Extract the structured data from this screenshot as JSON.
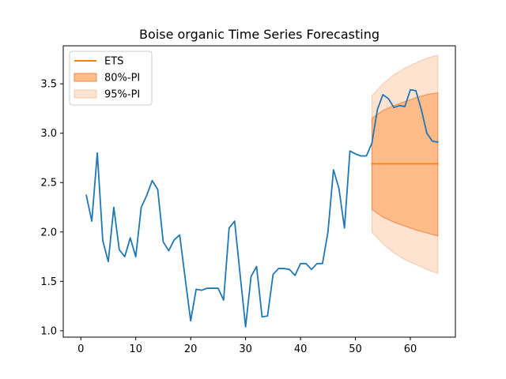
{
  "chart_data": {
    "type": "line",
    "title": "Boise organic Time Series Forecasting",
    "xlabel": "",
    "ylabel": "",
    "xlim": [
      -3.2,
      68.2
    ],
    "ylim": [
      0.935,
      3.885
    ],
    "x_ticks": [
      0,
      10,
      20,
      30,
      40,
      50,
      60
    ],
    "y_ticks": [
      1.0,
      1.5,
      2.0,
      2.5,
      3.0,
      3.5
    ],
    "y_tick_labels": [
      "1.0",
      "1.5",
      "2.0",
      "2.5",
      "3.0",
      "3.5"
    ],
    "grid": false,
    "legend_position": "top-left",
    "legend": [
      {
        "label": "ETS",
        "kind": "line",
        "color": "#ff7f0e"
      },
      {
        "label": "80%-PI",
        "kind": "fill",
        "color": "#ffbb88",
        "edge": "#ee8a50"
      },
      {
        "label": "95%-PI",
        "kind": "fill",
        "color": "#ffe3d1",
        "edge": "#f7c9aa"
      }
    ],
    "series": [
      {
        "role": "observed",
        "color": "#1f77b4",
        "x": [
          1,
          2,
          3,
          4,
          5,
          6,
          7,
          8,
          9,
          10,
          11,
          12,
          13,
          14,
          15,
          16,
          17,
          18,
          19,
          20,
          21,
          22,
          23,
          24,
          25,
          26,
          27,
          28,
          29,
          30,
          31,
          32,
          33,
          34,
          35,
          36,
          37,
          38,
          39,
          40,
          41,
          42,
          43,
          44,
          45,
          46,
          47,
          48,
          49,
          50,
          51,
          52,
          53,
          54,
          55,
          56,
          57,
          58,
          59,
          60,
          61,
          62,
          63,
          64,
          65
        ],
        "y": [
          2.37,
          2.11,
          2.8,
          1.91,
          1.7,
          2.25,
          1.82,
          1.75,
          1.94,
          1.75,
          2.25,
          2.37,
          2.52,
          2.43,
          1.9,
          1.81,
          1.92,
          1.97,
          1.53,
          1.1,
          1.42,
          1.41,
          1.43,
          1.43,
          1.43,
          1.31,
          2.04,
          2.11,
          1.57,
          1.04,
          1.55,
          1.65,
          1.14,
          1.15,
          1.57,
          1.63,
          1.63,
          1.62,
          1.56,
          1.68,
          1.68,
          1.62,
          1.68,
          1.68,
          2.0,
          2.63,
          2.44,
          2.04,
          2.82,
          2.79,
          2.77,
          2.77,
          2.9,
          3.24,
          3.39,
          3.35,
          3.26,
          3.28,
          3.27,
          3.44,
          3.43,
          3.24,
          3.0,
          2.92,
          2.91
        ]
      },
      {
        "name": "ETS",
        "role": "forecast",
        "color": "#ff7f0e",
        "x": [
          53,
          65
        ],
        "y": [
          2.69,
          2.69
        ]
      }
    ],
    "intervals": [
      {
        "name": "95%-PI",
        "x": [
          53,
          55,
          57,
          59,
          61,
          63,
          65
        ],
        "lower": [
          2.0,
          1.88,
          1.79,
          1.72,
          1.67,
          1.62,
          1.58
        ],
        "upper": [
          3.38,
          3.5,
          3.59,
          3.66,
          3.71,
          3.76,
          3.79
        ]
      },
      {
        "name": "80%-PI",
        "x": [
          53,
          55,
          57,
          59,
          61,
          63,
          65
        ],
        "lower": [
          2.23,
          2.15,
          2.1,
          2.06,
          2.02,
          1.99,
          1.96
        ],
        "upper": [
          3.15,
          3.23,
          3.28,
          3.32,
          3.36,
          3.39,
          3.41
        ]
      }
    ]
  }
}
